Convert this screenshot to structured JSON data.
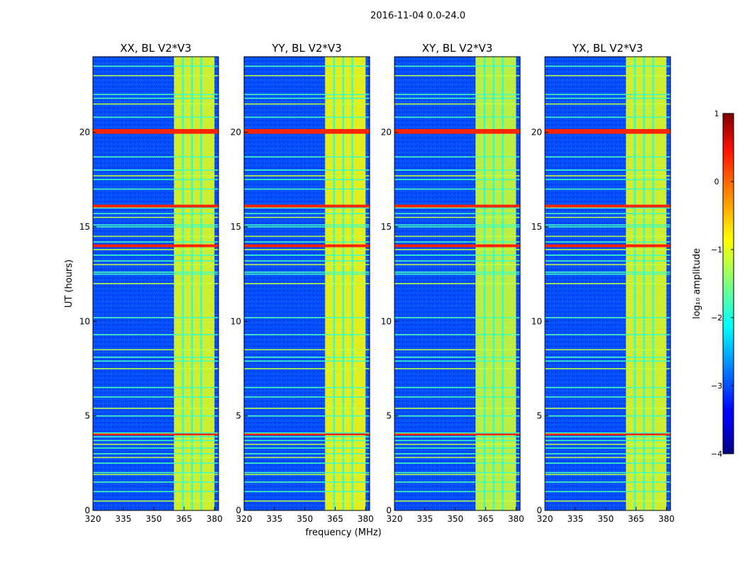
{
  "figure_title": "2016-11-04 0.0-24.0",
  "chart_data": [
    {
      "type": "heatmap",
      "title": "XX, BL V2*V3",
      "xlabel": "frequency (MHz)",
      "ylabel": "UT (hours)",
      "xlim": [
        320,
        382
      ],
      "ylim": [
        0,
        24
      ],
      "xticks": [
        320,
        335,
        350,
        365,
        380
      ],
      "yticks": [
        0,
        5,
        10,
        15,
        20
      ],
      "strong_band_MHz": [
        360,
        380
      ],
      "strong_band_level": -1.0
    },
    {
      "type": "heatmap",
      "title": "YY, BL V2*V3",
      "xlabel": "frequency (MHz)",
      "ylabel": "UT (hours)",
      "xlim": [
        320,
        382
      ],
      "ylim": [
        0,
        24
      ],
      "xticks": [
        320,
        335,
        350,
        365,
        380
      ],
      "yticks": [
        0,
        5,
        10,
        15,
        20
      ],
      "strong_band_MHz": [
        360,
        380
      ],
      "strong_band_level": -0.9
    },
    {
      "type": "heatmap",
      "title": "XY, BL V2*V3",
      "xlabel": "frequency (MHz)",
      "ylabel": "UT (hours)",
      "xlim": [
        320,
        382
      ],
      "ylim": [
        0,
        24
      ],
      "xticks": [
        320,
        335,
        350,
        365,
        380
      ],
      "yticks": [
        0,
        5,
        10,
        15,
        20
      ],
      "strong_band_MHz": [
        360,
        380
      ],
      "strong_band_level": -1.1
    },
    {
      "type": "heatmap",
      "title": "YX, BL V2*V3",
      "xlabel": "frequency (MHz)",
      "ylabel": "UT (hours)",
      "xlim": [
        320,
        382
      ],
      "ylim": [
        0,
        24
      ],
      "xticks": [
        320,
        335,
        350,
        365,
        380
      ],
      "yticks": [
        0,
        5,
        10,
        15,
        20
      ],
      "strong_band_MHz": [
        360,
        380
      ],
      "strong_band_level": -1.0
    }
  ],
  "colorbar": {
    "label": "log₁₀ amplitude",
    "range": [
      -4,
      1
    ],
    "ticks": [
      1,
      0,
      -1,
      -2,
      -3,
      -4
    ],
    "tick_labels": [
      "1",
      "0",
      "−1",
      "−2",
      "−3",
      "−4"
    ]
  },
  "colors": {
    "low": "#00007f",
    "background_level": "#0f3cf5",
    "high": "#7f0000"
  },
  "features": {
    "background_level": -3.0,
    "horizontal_lines_UT": [
      0.5,
      1.0,
      1.5,
      1.9,
      2.0,
      2.5,
      2.8,
      3.0,
      3.3,
      3.5,
      3.7,
      3.9,
      4.05,
      4.1,
      5.0,
      5.4,
      6.0,
      6.5,
      7.5,
      7.9,
      8.1,
      8.5,
      9.3,
      10.2,
      12.0,
      12.5,
      12.6,
      13.0,
      13.2,
      13.5,
      13.8,
      14.0,
      14.2,
      14.5,
      15.0,
      15.1,
      15.5,
      15.7,
      16.0,
      16.1,
      17.0,
      17.5,
      17.7,
      18.0,
      18.7,
      20.0,
      20.1,
      20.8,
      21.5,
      21.8,
      22.0,
      23.0,
      23.5
    ],
    "strong_lines_UT": [
      4.05,
      13.9,
      14.0,
      15.6,
      15.9,
      16.1,
      20.0,
      20.1
    ],
    "gap_channels_MHz": [
      364,
      368.5,
      373
    ]
  }
}
